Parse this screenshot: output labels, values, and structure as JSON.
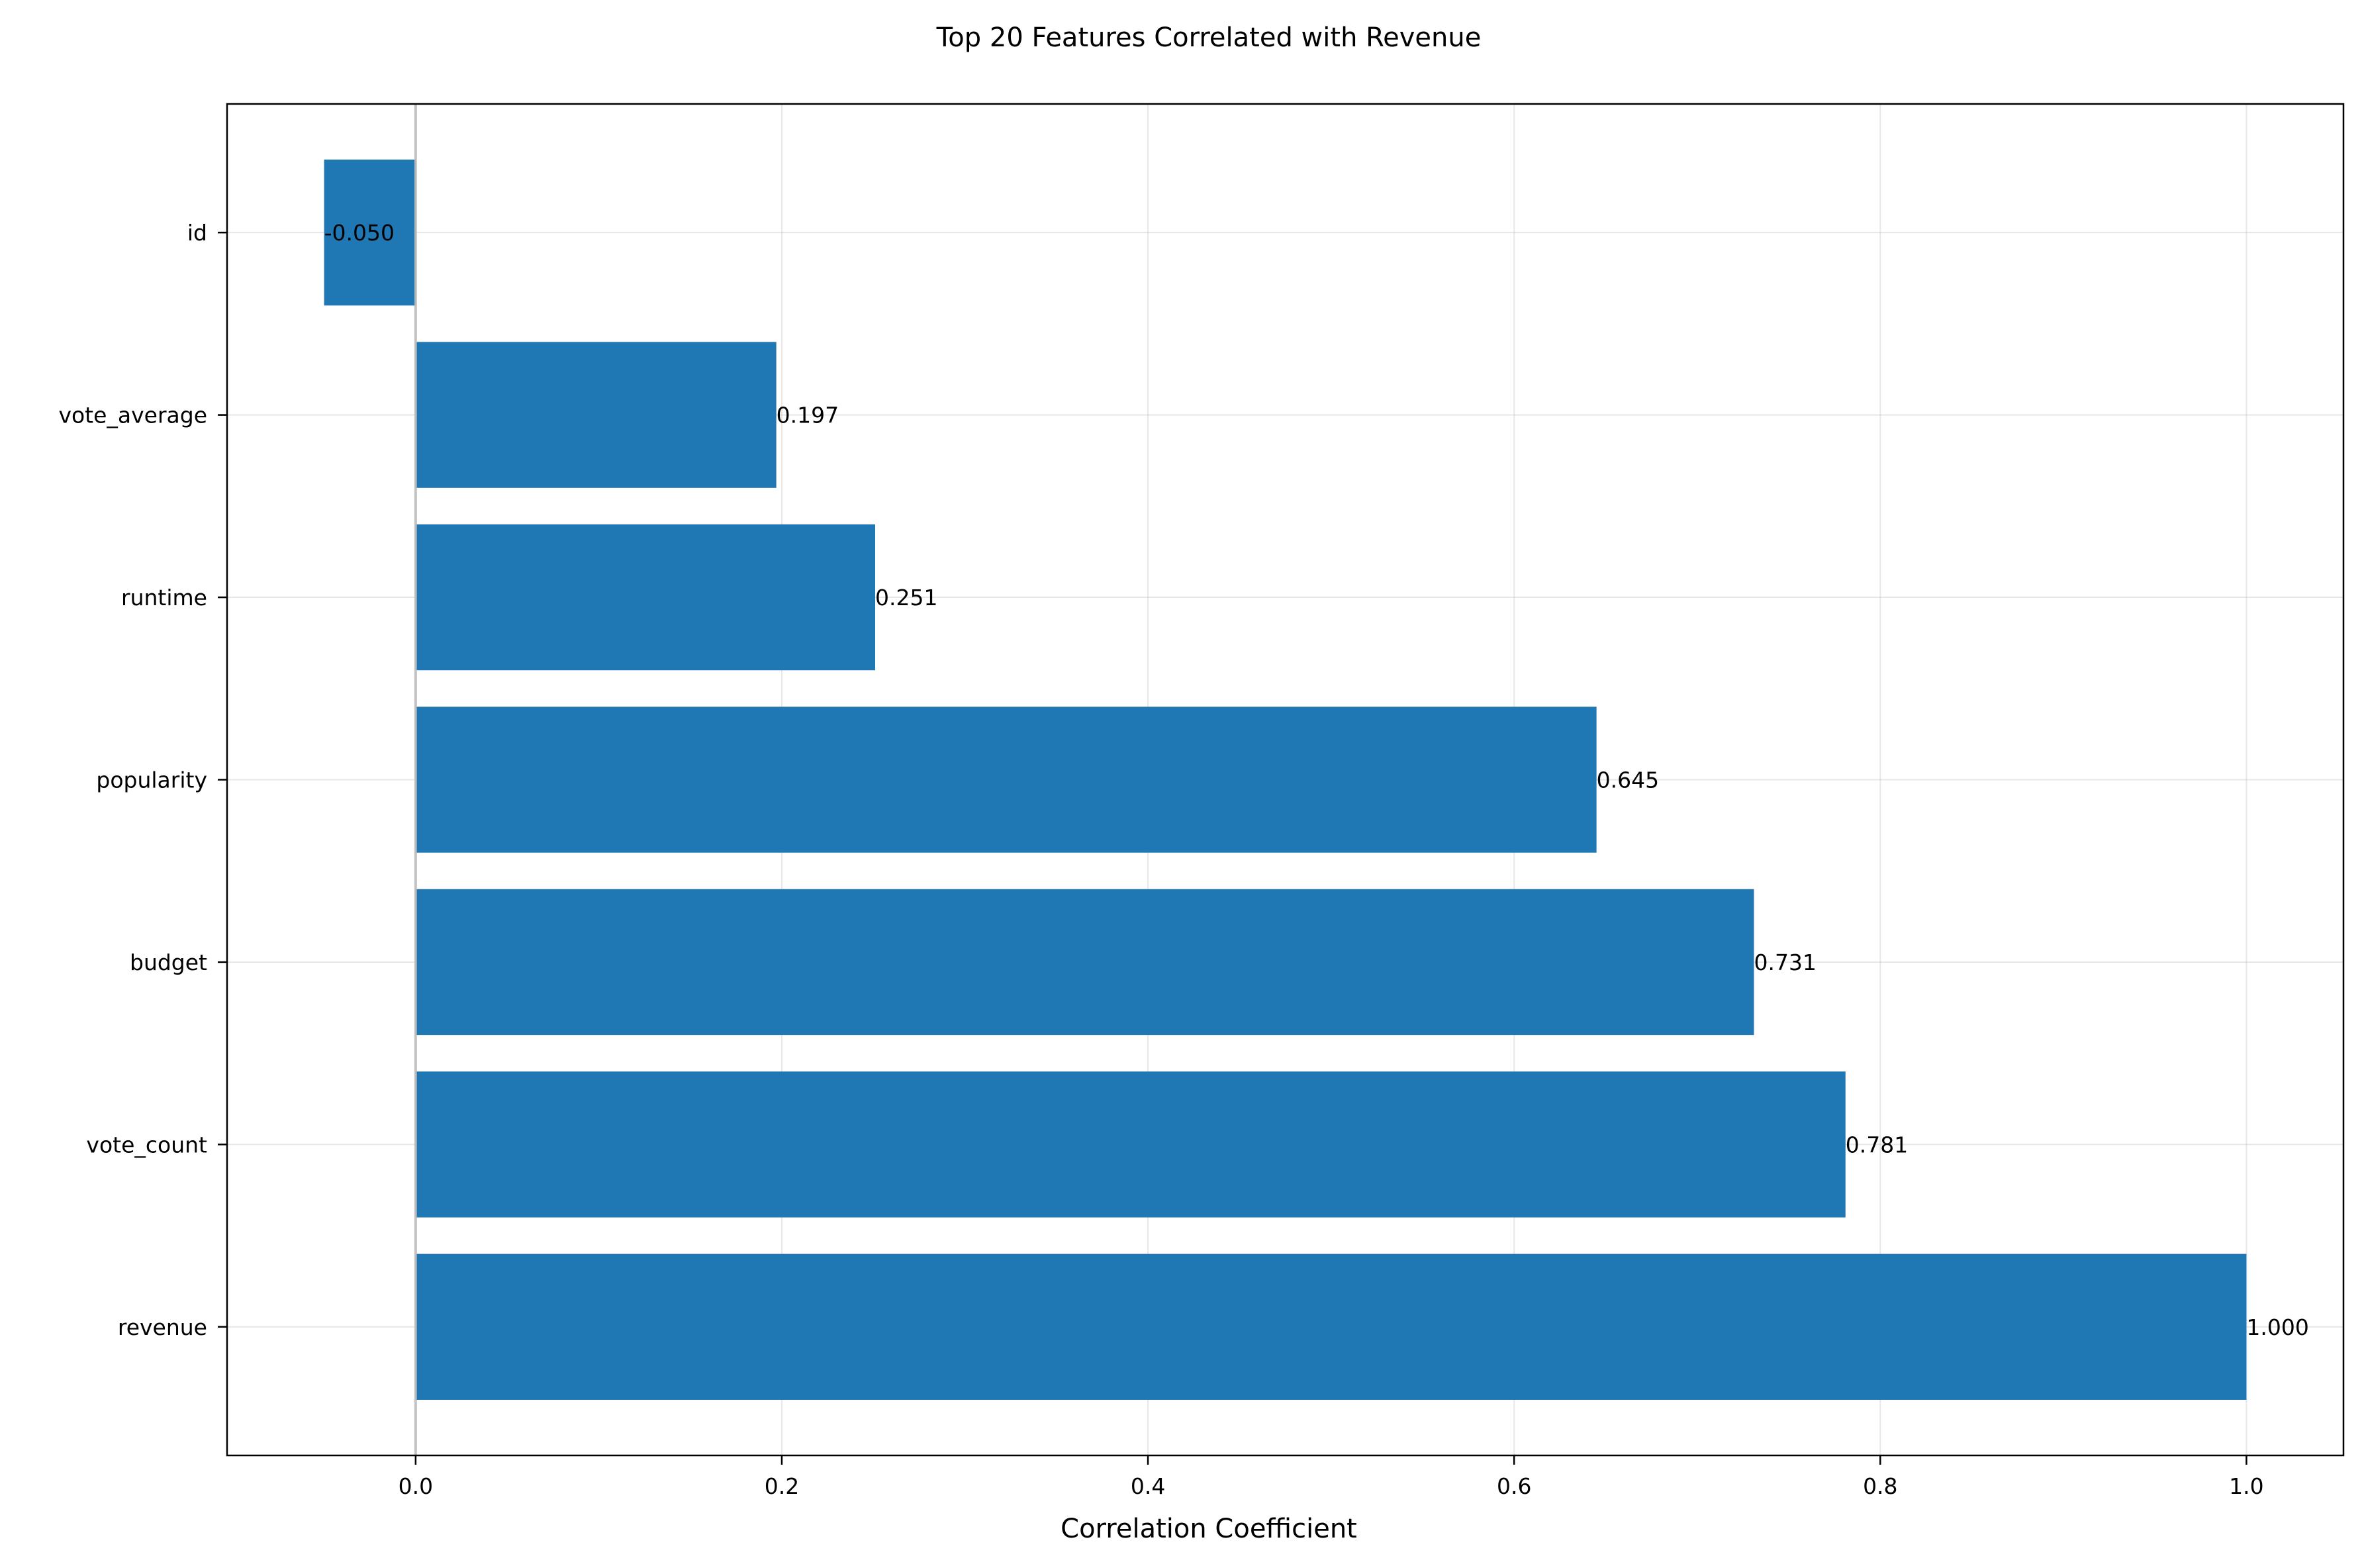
{
  "chart_data": {
    "type": "bar",
    "orientation": "horizontal",
    "title": "Top 20 Features Correlated with Revenue",
    "xlabel": "Correlation Coefficient",
    "ylabel": "",
    "xlim": [
      -0.103,
      1.053
    ],
    "x_ticks": [
      0.0,
      0.2,
      0.4,
      0.6,
      0.8,
      1.0
    ],
    "x_tick_labels": [
      "0.0",
      "0.2",
      "0.4",
      "0.6",
      "0.8",
      "1.0"
    ],
    "grid": true,
    "legend": "none",
    "bar_color": "#1f77b4",
    "zero_line_color": "#bbbbbb",
    "categories": [
      "revenue",
      "vote_count",
      "budget",
      "popularity",
      "runtime",
      "vote_average",
      "id"
    ],
    "values": [
      1.0,
      0.781,
      0.731,
      0.645,
      0.251,
      0.197,
      -0.05
    ],
    "value_labels": [
      "1.000",
      "0.781",
      "0.731",
      "0.645",
      "0.251",
      "0.197",
      "-0.050"
    ]
  }
}
